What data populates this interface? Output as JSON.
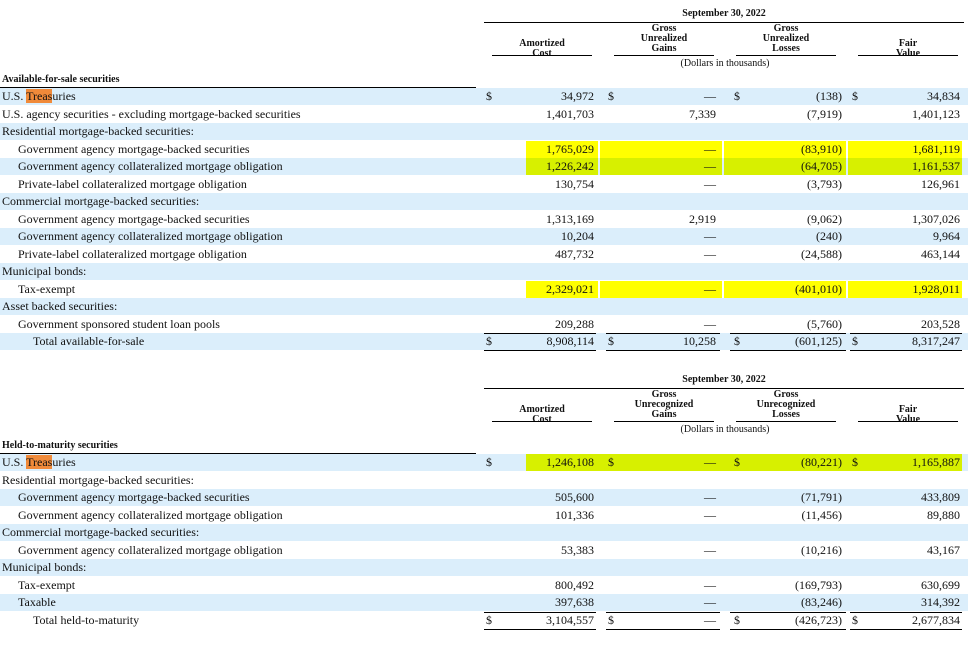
{
  "afs": {
    "date": "September 30, 2022",
    "col1": [
      "Amortized",
      "Cost"
    ],
    "col2": [
      "Gross",
      "Unrealized",
      "Gains"
    ],
    "col3": [
      "Gross",
      "Unrealized",
      "Losses"
    ],
    "col4": [
      "Fair",
      "Value"
    ],
    "units": "(Dollars in thousands)",
    "title": "Available-for-sale securities",
    "rows": [
      {
        "label_pre": "U.S. ",
        "label_hl": "Treas",
        "label_post": "uries",
        "ind": 0,
        "shade": true,
        "cur": "$",
        "v1": "34,972",
        "v2": "—",
        "v3": "(138)",
        "v4": "34,834"
      },
      {
        "label": "U.S. agency securities - excluding mortgage-backed securities",
        "ind": 0,
        "v1": "1,401,703",
        "v2": "7,339",
        "v3": "(7,919)",
        "v4": "1,401,123"
      },
      {
        "label": "Residential mortgage-backed securities:",
        "ind": 0,
        "shade": true
      },
      {
        "label": "Government agency mortgage-backed securities",
        "ind": 1,
        "v1": "1,765,029",
        "v2": "—",
        "v3": "(83,910)",
        "v4": "1,681,119",
        "hl": "y"
      },
      {
        "label": "Government agency collateralized mortgage obligation",
        "ind": 1,
        "shade": true,
        "v1": "1,226,242",
        "v2": "—",
        "v3": "(64,705)",
        "v4": "1,161,537",
        "hl": "g"
      },
      {
        "label": "Private-label collateralized mortgage obligation",
        "ind": 1,
        "v1": "130,754",
        "v2": "—",
        "v3": "(3,793)",
        "v4": "126,961"
      },
      {
        "label": "Commercial mortgage-backed securities:",
        "ind": 0,
        "shade": true
      },
      {
        "label": "Government agency mortgage-backed securities",
        "ind": 1,
        "v1": "1,313,169",
        "v2": "2,919",
        "v3": "(9,062)",
        "v4": "1,307,026"
      },
      {
        "label": "Government agency collateralized mortgage obligation",
        "ind": 1,
        "shade": true,
        "v1": "10,204",
        "v2": "—",
        "v3": "(240)",
        "v4": "9,964"
      },
      {
        "label": "Private-label collateralized mortgage obligation",
        "ind": 1,
        "v1": "487,732",
        "v2": "—",
        "v3": "(24,588)",
        "v4": "463,144"
      },
      {
        "label": "Municipal bonds:",
        "ind": 0,
        "shade": true
      },
      {
        "label": "Tax-exempt",
        "ind": 1,
        "v1": "2,329,021",
        "v2": "—",
        "v3": "(401,010)",
        "v4": "1,928,011",
        "hl": "y"
      },
      {
        "label": "Asset backed securities:",
        "ind": 0,
        "shade": true
      },
      {
        "label": "Government sponsored student loan pools",
        "ind": 1,
        "v1": "209,288",
        "v2": "—",
        "v3": "(5,760)",
        "v4": "203,528"
      },
      {
        "label": "Total available-for-sale",
        "ind": 2,
        "shade": true,
        "cur": "$",
        "v1": "8,908,114",
        "v2": "10,258",
        "v3": "(601,125)",
        "v4": "8,317,247",
        "total": true
      }
    ]
  },
  "htm": {
    "date": "September 30, 2022",
    "col1": [
      "Amortized",
      "Cost"
    ],
    "col2": [
      "Gross",
      "Unrecognized",
      "Gains"
    ],
    "col3": [
      "Gross",
      "Unrecognized",
      "Losses"
    ],
    "col4": [
      "Fair",
      "Value"
    ],
    "units": "(Dollars in thousands)",
    "title": "Held-to-maturity securities",
    "rows": [
      {
        "label_pre": "U.S. ",
        "label_hl": "Treas",
        "label_post": "uries",
        "ind": 0,
        "shade": true,
        "cur": "$",
        "v1": "1,246,108",
        "v2": "—",
        "v3": "(80,221)",
        "v4": "1,165,887",
        "hl": "g"
      },
      {
        "label": "Residential mortgage-backed securities:",
        "ind": 0
      },
      {
        "label": "Government agency mortgage-backed securities",
        "ind": 1,
        "shade": true,
        "v1": "505,600",
        "v2": "—",
        "v3": "(71,791)",
        "v4": "433,809"
      },
      {
        "label": "Government agency collateralized mortgage obligation",
        "ind": 1,
        "v1": "101,336",
        "v2": "—",
        "v3": "(11,456)",
        "v4": "89,880"
      },
      {
        "label": "Commercial mortgage-backed securities:",
        "ind": 0,
        "shade": true
      },
      {
        "label": "Government agency collateralized mortgage obligation",
        "ind": 1,
        "v1": "53,383",
        "v2": "—",
        "v3": "(10,216)",
        "v4": "43,167"
      },
      {
        "label": "Municipal bonds:",
        "ind": 0,
        "shade": true
      },
      {
        "label": "Tax-exempt",
        "ind": 1,
        "v1": "800,492",
        "v2": "—",
        "v3": "(169,793)",
        "v4": "630,699"
      },
      {
        "label": "Taxable",
        "ind": 1,
        "shade": true,
        "v1": "397,638",
        "v2": "—",
        "v3": "(83,246)",
        "v4": "314,392"
      },
      {
        "label": "Total held-to-maturity",
        "ind": 2,
        "cur": "$",
        "v1": "3,104,557",
        "v2": "—",
        "v3": "(426,723)",
        "v4": "2,677,834",
        "total": true
      }
    ]
  },
  "colors": {
    "shade": "#dbeefb",
    "highlight_yellow": "#ffff00",
    "highlight_green": "#d7f000",
    "highlight_orange": "#f08a3a"
  }
}
